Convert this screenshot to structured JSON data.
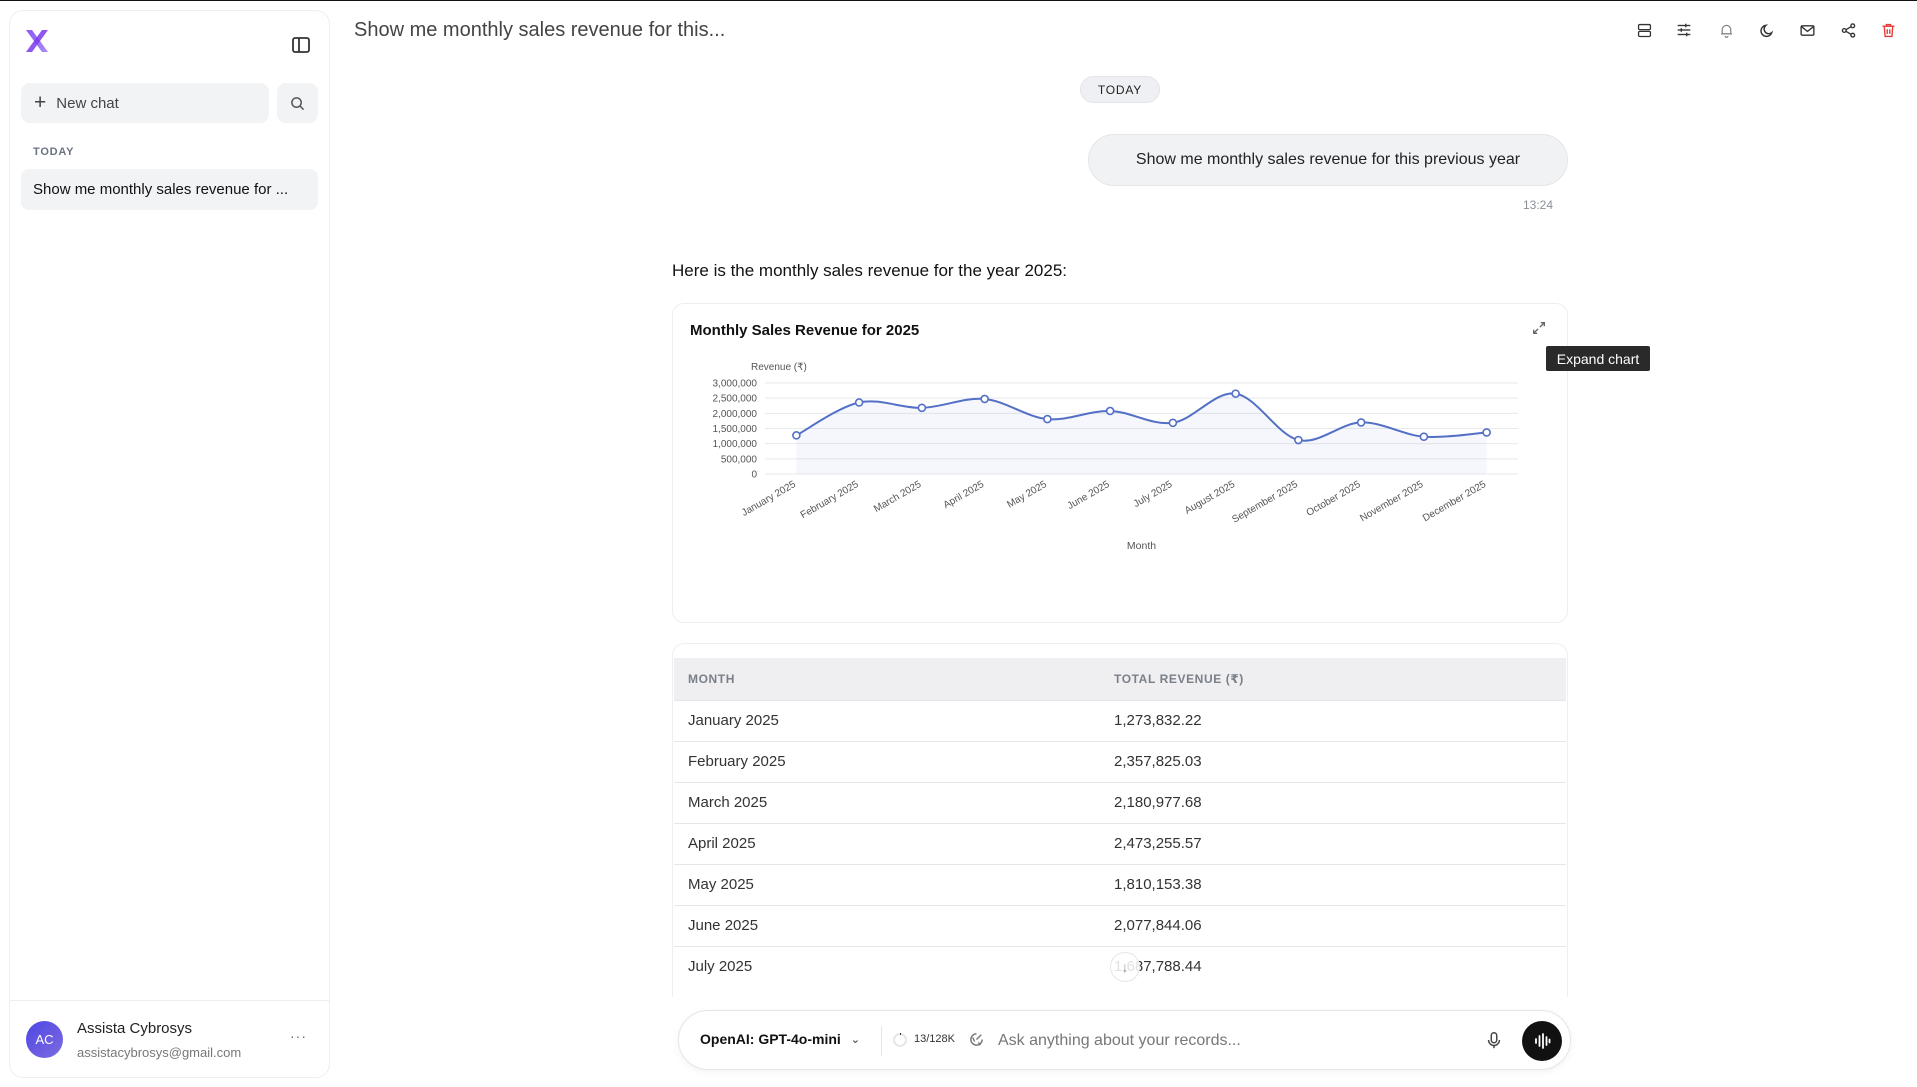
{
  "header": {
    "title": "Show me monthly sales revenue for this..."
  },
  "sidebar": {
    "new_chat_label": "New chat",
    "section_label": "TODAY",
    "chats": [
      {
        "label": "Show me monthly sales revenue for ..."
      }
    ],
    "user": {
      "initials": "AC",
      "name": "Assista Cybrosys",
      "email": "assistacybrosys@gmail.com",
      "menu": "···"
    }
  },
  "conversation": {
    "day_label": "TODAY",
    "user_message": "Show me monthly sales revenue for this previous year",
    "user_time": "13:24",
    "assistant_text": "Here is the monthly sales revenue for the year 2025:"
  },
  "chart_card": {
    "tooltip": "Expand chart"
  },
  "chart_data": {
    "type": "line",
    "title": "Monthly Sales Revenue for 2025",
    "ylabel": "Revenue (₹)",
    "xlabel": "Month",
    "categories": [
      "January 2025",
      "February 2025",
      "March 2025",
      "April 2025",
      "May 2025",
      "June 2025",
      "July 2025",
      "August 2025",
      "September 2025",
      "October 2025",
      "November 2025",
      "December 2025"
    ],
    "values": [
      1273832.22,
      2357825.03,
      2180977.68,
      2473255.57,
      1810153.38,
      2077844.06,
      1687788.44,
      2650000,
      1120000,
      1700000,
      1230000,
      1370000
    ],
    "ylim": [
      0,
      3000000
    ],
    "yticks": [
      "3,000,000",
      "2,500,000",
      "2,000,000",
      "1,500,000",
      "1,000,000",
      "500,000",
      "0"
    ],
    "color": "#5470c6",
    "grid": true
  },
  "table": {
    "headers": [
      "MONTH",
      "TOTAL REVENUE (₹)"
    ],
    "rows": [
      [
        "January 2025",
        "1,273,832.22"
      ],
      [
        "February 2025",
        "2,357,825.03"
      ],
      [
        "March 2025",
        "2,180,977.68"
      ],
      [
        "April 2025",
        "2,473,255.57"
      ],
      [
        "May 2025",
        "1,810,153.38"
      ],
      [
        "June 2025",
        "2,077,844.06"
      ],
      [
        "July 2025",
        "1,687,788.44"
      ]
    ]
  },
  "composer": {
    "model": "OpenAI: GPT-4o-mini",
    "tokens": "13/128K",
    "placeholder": "Ask anything about your records..."
  }
}
